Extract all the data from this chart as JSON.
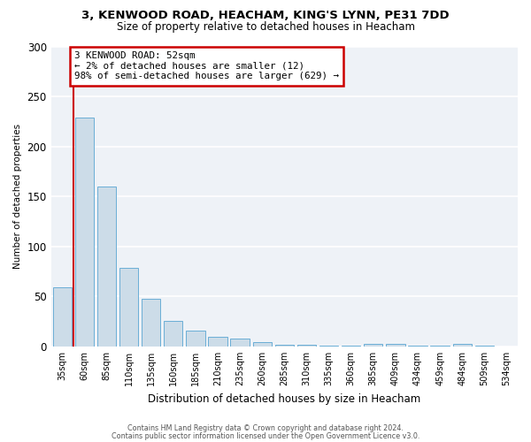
{
  "title_line1": "3, KENWOOD ROAD, HEACHAM, KING'S LYNN, PE31 7DD",
  "title_line2": "Size of property relative to detached houses in Heacham",
  "xlabel": "Distribution of detached houses by size in Heacham",
  "ylabel": "Number of detached properties",
  "categories": [
    "35sqm",
    "60sqm",
    "85sqm",
    "110sqm",
    "135sqm",
    "160sqm",
    "185sqm",
    "210sqm",
    "235sqm",
    "260sqm",
    "285sqm",
    "310sqm",
    "335sqm",
    "360sqm",
    "385sqm",
    "409sqm",
    "434sqm",
    "459sqm",
    "484sqm",
    "509sqm",
    "534sqm"
  ],
  "values": [
    59,
    229,
    160,
    79,
    48,
    26,
    16,
    10,
    8,
    4,
    2,
    2,
    1,
    1,
    3,
    3,
    1,
    1,
    3,
    1,
    0
  ],
  "bar_color": "#ccdce8",
  "bar_edge_color": "#6aaed6",
  "bar_width": 0.85,
  "vline_color": "#cc0000",
  "vline_x": 0.5,
  "annotation_text_line1": "3 KENWOOD ROAD: 52sqm",
  "annotation_text_line2": "← 2% of detached houses are smaller (12)",
  "annotation_text_line3": "98% of semi-detached houses are larger (629) →",
  "annotation_box_color": "white",
  "annotation_box_edge": "#cc0000",
  "ylim": [
    0,
    300
  ],
  "yticks": [
    0,
    50,
    100,
    150,
    200,
    250,
    300
  ],
  "background_color": "#eef2f7",
  "grid_color": "white",
  "footer_line1": "Contains HM Land Registry data © Crown copyright and database right 2024.",
  "footer_line2": "Contains public sector information licensed under the Open Government Licence v3.0."
}
